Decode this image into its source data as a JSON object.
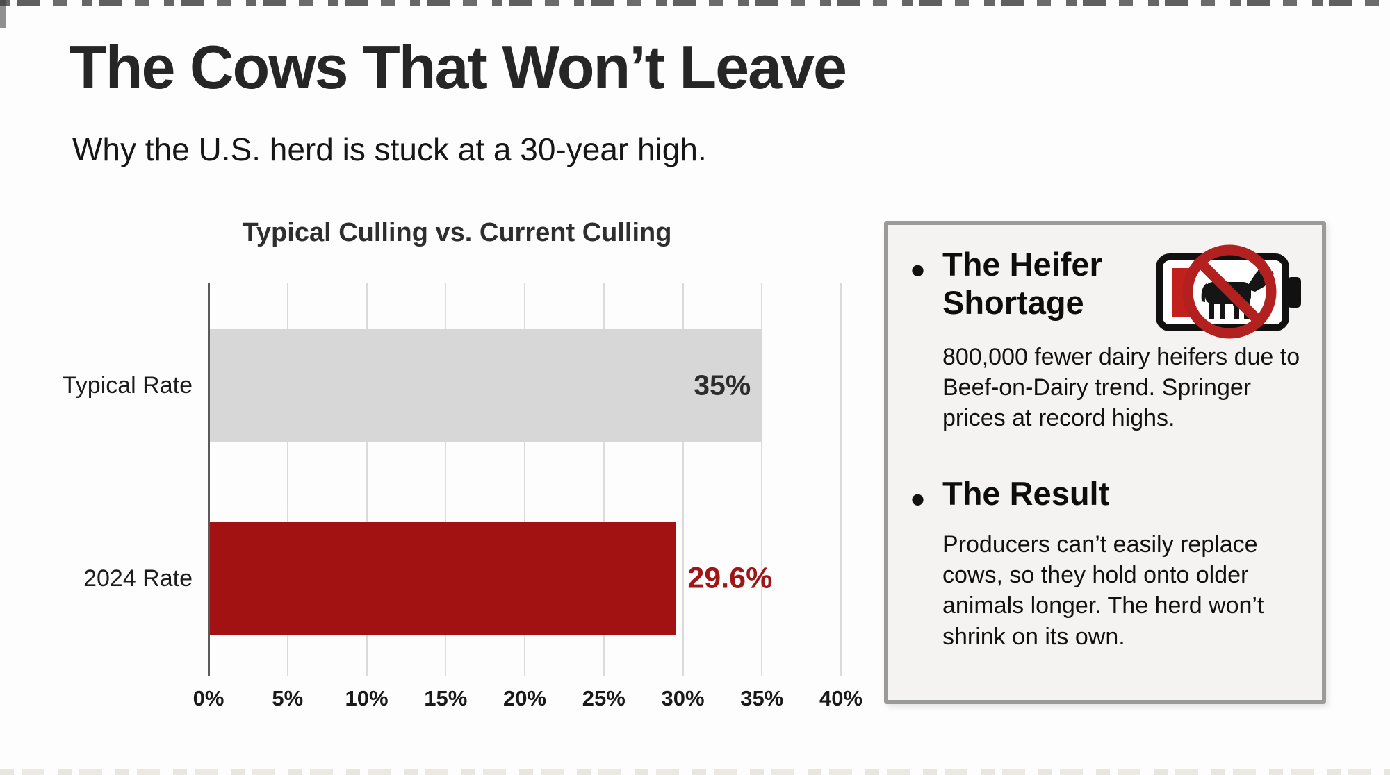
{
  "header": {
    "title": "The Cows That Won’t Leave",
    "subtitle": "Why the U.S. herd is stuck at a 30-year high."
  },
  "chart_data": {
    "type": "bar",
    "orientation": "horizontal",
    "title": "Typical Culling vs. Current Culling",
    "categories": [
      "Typical Rate",
      "2024 Rate"
    ],
    "values": [
      35,
      29.6
    ],
    "value_labels": [
      "35%",
      "29.6%"
    ],
    "bar_colors": [
      "#d7d7d7",
      "#a31212"
    ],
    "value_label_colors": [
      "#2d2d2d",
      "#a01616"
    ],
    "value_label_placement": [
      "inside",
      "outside"
    ],
    "xlabel": "",
    "ylabel": "",
    "xlim": [
      0,
      40
    ],
    "x_ticks": [
      0,
      5,
      10,
      15,
      20,
      25,
      30,
      35,
      40
    ],
    "x_tick_labels": [
      "0%",
      "5%",
      "10%",
      "15%",
      "20%",
      "25%",
      "30%",
      "35%",
      "40%"
    ],
    "grid": true,
    "legend": "none"
  },
  "panel": {
    "bullet_glyph": "•",
    "items": [
      {
        "heading": "The Heifer Shortage",
        "body": "800,000 fewer dairy heifers due to Beef-on-Dairy trend. Springer prices at record highs.",
        "icon": "no-cow-battery-icon"
      },
      {
        "heading": "The Result",
        "body": "Producers can’t easily replace cows, so they hold onto older animals longer. The herd won’t shrink on its own."
      }
    ]
  },
  "colors": {
    "background": "#fdfdfd",
    "bar_gray": "#d7d7d7",
    "bar_red": "#a31212",
    "value_red": "#a01616",
    "panel_bg": "#f4f3f1",
    "panel_border": "#9a9a9a",
    "prohibition_red": "#b32020",
    "battery_charge_red": "#c1201d",
    "text_dark": "#1d1d1d"
  }
}
